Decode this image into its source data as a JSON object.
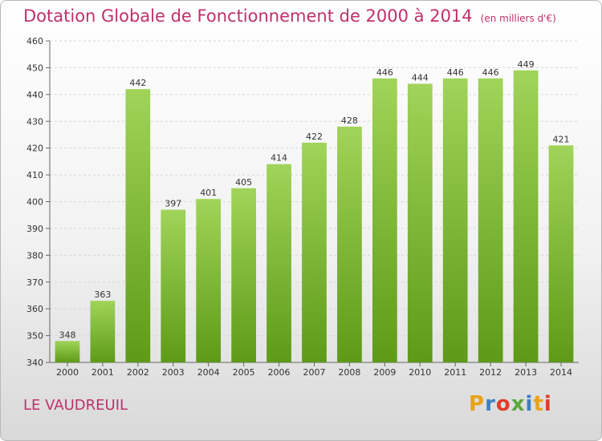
{
  "title": "Dotation Globale de Fonctionnement de 2000 à 2014",
  "subtitle": "(en milliers d'€)",
  "commune": "LE VAUDREUIL",
  "logo": {
    "letters": [
      "P",
      "r",
      "o",
      "x",
      "i",
      "t",
      "i"
    ],
    "colors": [
      "#e8a317",
      "#3a7fc1",
      "#e23b2c",
      "#5aa83c",
      "#3a7fc1",
      "#e8a317",
      "#e23b2c"
    ]
  },
  "colors": {
    "bar_light": "#a0d45a",
    "bar_dark": "#5e9a17",
    "title": "#c0306a"
  },
  "chart_data": {
    "type": "bar",
    "categories": [
      "2000",
      "2001",
      "2002",
      "2003",
      "2004",
      "2005",
      "2006",
      "2007",
      "2008",
      "2009",
      "2010",
      "2011",
      "2012",
      "2013",
      "2014"
    ],
    "values": [
      348,
      363,
      442,
      397,
      401,
      405,
      414,
      422,
      428,
      446,
      444,
      446,
      446,
      449,
      421
    ],
    "title": "Dotation Globale de Fonctionnement de 2000 à 2014",
    "subtitle": "(en milliers d'€)",
    "ylim": [
      340,
      460
    ],
    "yticks": [
      340,
      350,
      360,
      370,
      380,
      390,
      400,
      410,
      420,
      430,
      440,
      450,
      460
    ],
    "grid": true,
    "data_labels": true
  }
}
